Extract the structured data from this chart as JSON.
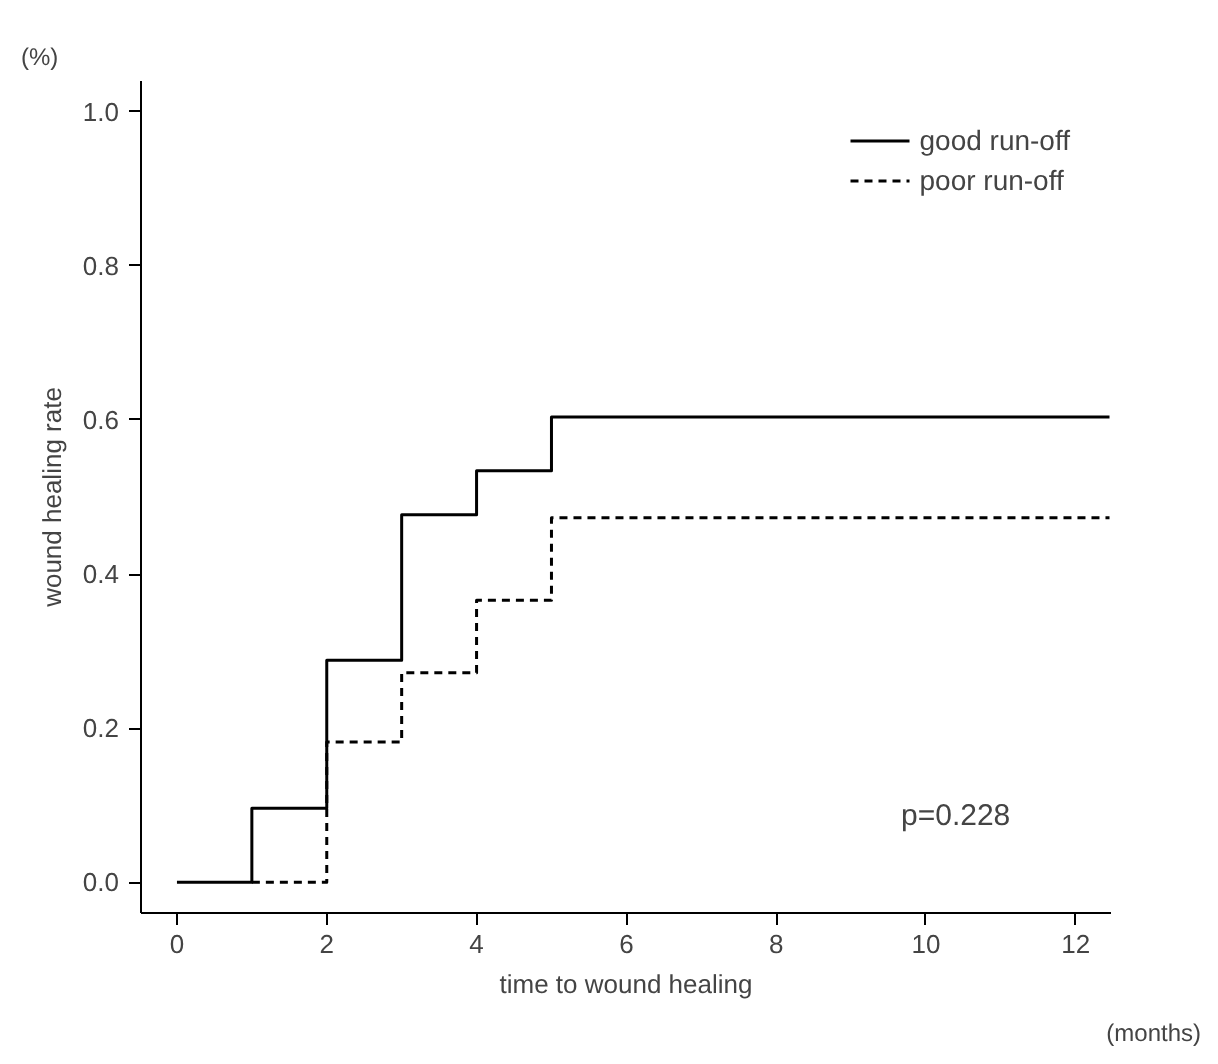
{
  "chart_data": {
    "type": "step",
    "xlabel": "time to wound healing",
    "ylabel": "wound healing rate",
    "xlim": [
      -0.48,
      12.47
    ],
    "ylim": [
      -0.04,
      1.04
    ],
    "xticks": [
      0,
      2,
      4,
      6,
      8,
      10,
      12
    ],
    "yticks": [
      {
        "value": 0,
        "label": "0.0"
      },
      {
        "value": 0.2,
        "label": "0.2"
      },
      {
        "value": 0.4,
        "label": "0.4"
      },
      {
        "value": 0.6,
        "label": "0.6"
      },
      {
        "value": 0.8,
        "label": "0.8"
      },
      {
        "value": 1,
        "label": "1.0"
      }
    ],
    "series": [
      {
        "name": "good run-off",
        "color": "#000000",
        "line_style": "solid",
        "x": [
          0,
          1,
          2,
          3,
          4,
          5,
          12.45
        ],
        "values": [
          0,
          0.096,
          0.288,
          0.477,
          0.534,
          0.604,
          0.604
        ]
      },
      {
        "name": "poor run-off",
        "color": "#000000",
        "line_style": "dashed",
        "x": [
          1,
          2,
          3,
          4,
          5,
          12.45
        ],
        "values": [
          0,
          0.182,
          0.272,
          0.366,
          0.473,
          0.473
        ]
      }
    ],
    "annotations": [
      "(%)",
      "(months)",
      "p=0.228"
    ],
    "legend": "top right",
    "grid": false
  }
}
